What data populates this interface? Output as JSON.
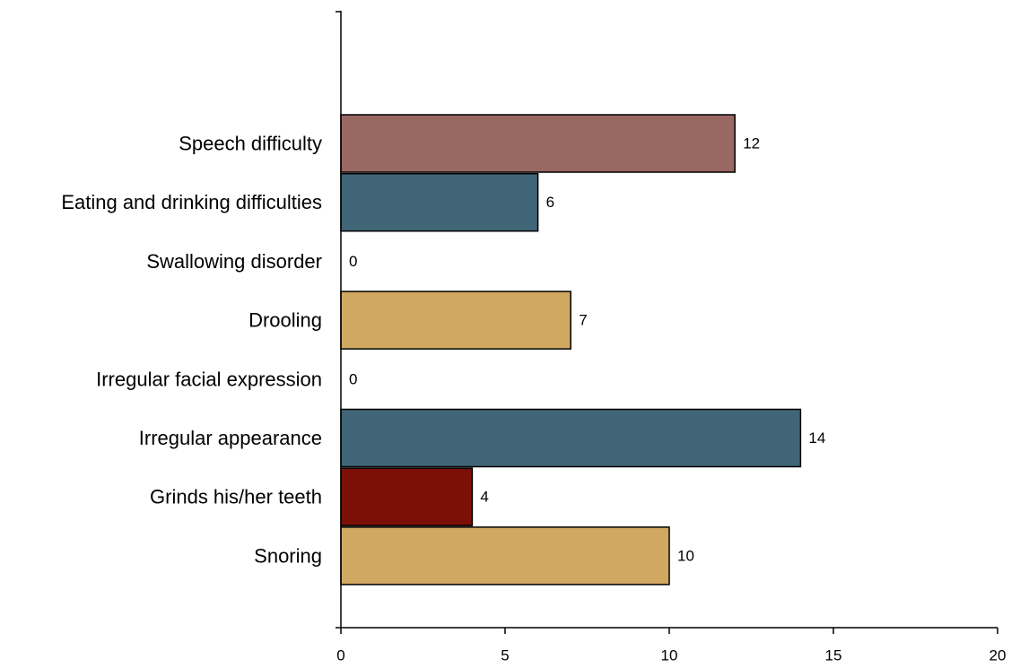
{
  "chart_data": {
    "type": "bar",
    "orientation": "horizontal",
    "title": "",
    "xlabel": "",
    "ylabel": "",
    "xlim": [
      0,
      20
    ],
    "xticks": [
      0,
      5,
      10,
      15,
      20
    ],
    "grid": false,
    "legend": "none",
    "categories": [
      "Speech difficulty",
      "Eating and drinking difficulties",
      "Swallowing disorder",
      "Drooling",
      "Irregular facial expression",
      "Irregular appearance",
      "Grinds his/her teeth",
      "Snoring"
    ],
    "values": [
      12,
      6,
      0,
      7,
      0,
      14,
      4,
      10
    ],
    "colors": [
      "#9a6863",
      "#406577",
      "#d0a861",
      "#d0a861",
      "#406577",
      "#406577",
      "#7c1008",
      "#d0a861"
    ]
  }
}
